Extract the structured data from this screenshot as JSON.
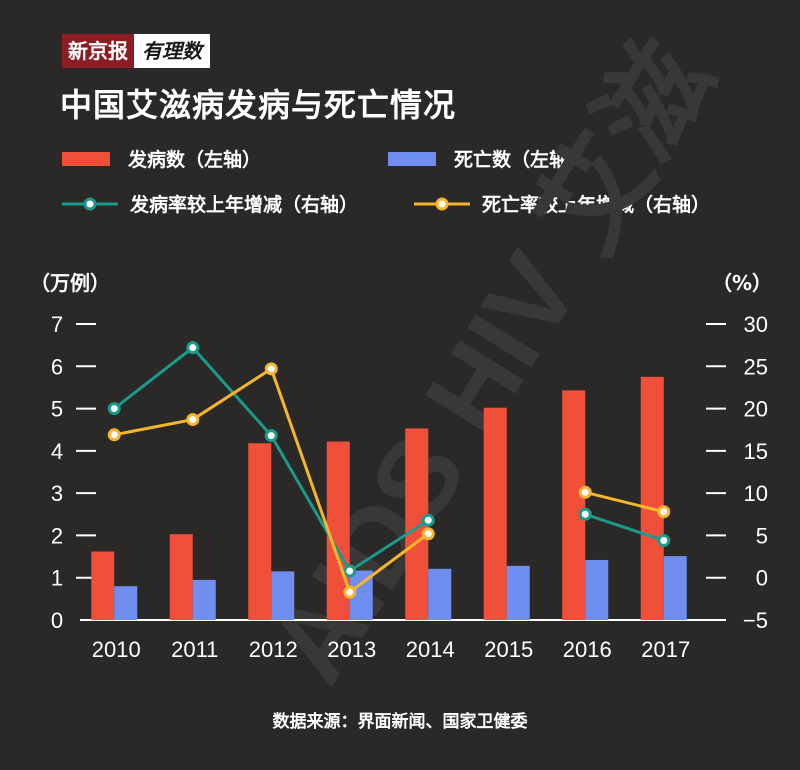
{
  "logo": {
    "name": "新京报",
    "sub": "有理数"
  },
  "title": "中国艾滋病发病与死亡情况",
  "footer": "数据来源：界面新闻、国家卫健委",
  "watermark": "AIDS HIV 艾滋",
  "colors": {
    "background": "#2b2928",
    "incidence_bar": "#f0503a",
    "death_bar": "#6f8ef0",
    "incidence_line": "#1a9a8a",
    "death_line": "#f7b52c"
  },
  "chart_data": {
    "type": "bar",
    "title": "中国艾滋病发病与死亡情况",
    "categories": [
      "2010",
      "2011",
      "2012",
      "2013",
      "2014",
      "2015",
      "2016",
      "2017"
    ],
    "left_axis": {
      "unit": "（万例）",
      "ylim": [
        0,
        7
      ],
      "ticks": [
        "0",
        "1",
        "2",
        "3",
        "4",
        "5",
        "6",
        "7"
      ]
    },
    "right_axis": {
      "unit": "（%）",
      "ylim": [
        -5,
        30
      ],
      "ticks": [
        "−5",
        "0",
        "5",
        "10",
        "15",
        "20",
        "25",
        "30"
      ]
    },
    "series": [
      {
        "name": "发病数（左轴）",
        "type": "bar",
        "axis": "left",
        "values": [
          1.62,
          2.03,
          4.18,
          4.22,
          4.53,
          5.02,
          5.43,
          5.75
        ]
      },
      {
        "name": "死亡数（左轴）",
        "type": "bar",
        "axis": "left",
        "values": [
          0.8,
          0.95,
          1.15,
          1.17,
          1.21,
          1.28,
          1.42,
          1.51
        ]
      },
      {
        "name": "发病率较上年增减（右轴）",
        "type": "line",
        "axis": "right",
        "values": [
          20.0,
          27.2,
          16.8,
          0.8,
          6.8,
          null,
          7.5,
          4.4
        ]
      },
      {
        "name": "死亡率较上年增减（右轴）",
        "type": "line",
        "axis": "right",
        "values": [
          16.9,
          18.7,
          24.7,
          -1.7,
          5.2,
          null,
          10.1,
          7.8
        ]
      }
    ],
    "grid": false,
    "legend_position": "top"
  }
}
